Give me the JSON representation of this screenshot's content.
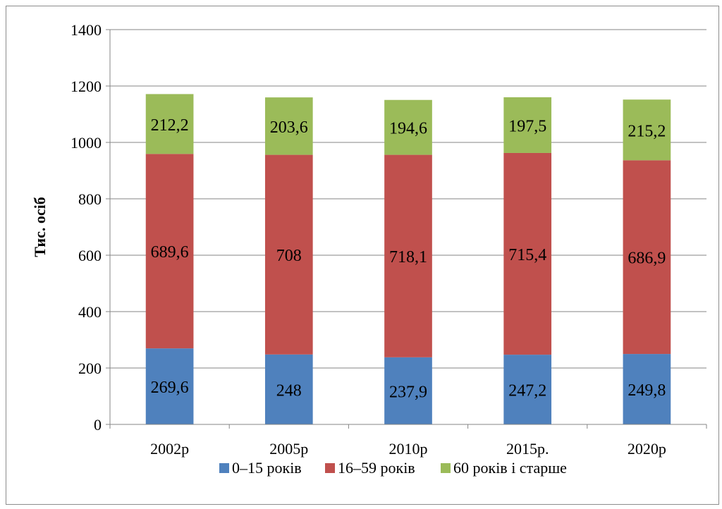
{
  "chart_data": {
    "type": "bar",
    "stacked": true,
    "title": "",
    "xlabel": "",
    "ylabel": "Тис. осіб",
    "categories": [
      "2002р",
      "2005р",
      "2010р",
      "2015р.",
      "2020р"
    ],
    "series": [
      {
        "name": "0–15 років",
        "color": "#4f81bd",
        "values": [
          269.6,
          248,
          237.9,
          247.2,
          249.8
        ],
        "labels": [
          "269,6",
          "248",
          "237,9",
          "247,2",
          "249,8"
        ]
      },
      {
        "name": "16–59 років",
        "color": "#c0504d",
        "values": [
          689.6,
          708,
          718.1,
          715.4,
          686.9
        ],
        "labels": [
          "689,6",
          "708",
          "718,1",
          "715,4",
          "686,9"
        ]
      },
      {
        "name": "60 років і старше",
        "color": "#9bbb59",
        "values": [
          212.2,
          203.6,
          194.6,
          197.5,
          215.2
        ],
        "labels": [
          "212,2",
          "203,6",
          "194,6",
          "197,5",
          "215,2"
        ]
      }
    ],
    "ylim": [
      0,
      1400
    ],
    "yticks": [
      0,
      200,
      400,
      600,
      800,
      1000,
      1200,
      1400
    ],
    "grid": true,
    "legend": "bottom"
  }
}
